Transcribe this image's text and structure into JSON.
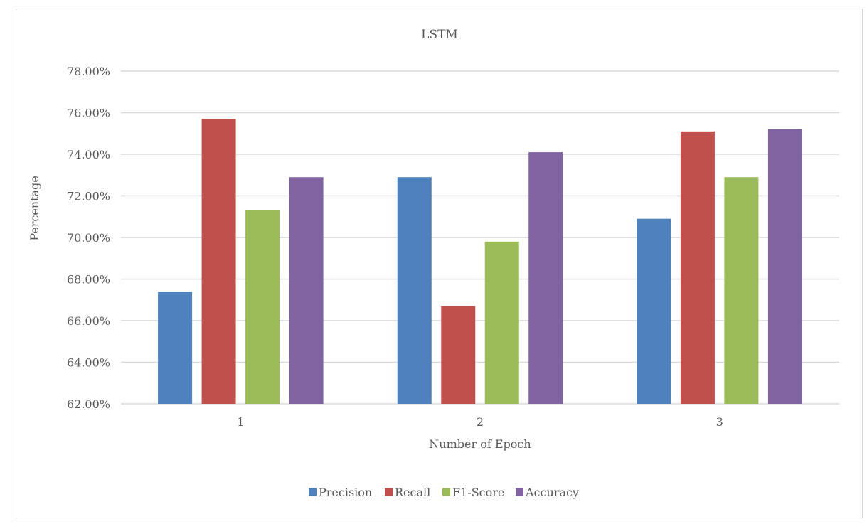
{
  "chart_data": {
    "type": "bar",
    "title": "LSTM",
    "xlabel": "Number of Epoch",
    "ylabel": "Percentage",
    "categories": [
      "1",
      "2",
      "3"
    ],
    "ylim": [
      0.62,
      0.78
    ],
    "yticks": [
      0.62,
      0.64,
      0.66,
      0.68,
      0.7,
      0.72,
      0.74,
      0.76,
      0.78
    ],
    "ytick_labels": [
      "62.00%",
      "64.00%",
      "66.00%",
      "68.00%",
      "70.00%",
      "72.00%",
      "74.00%",
      "76.00%",
      "78.00%"
    ],
    "grid": true,
    "legend_position": "bottom",
    "series": [
      {
        "name": "Precision",
        "color": "#4F81BD",
        "values": [
          0.674,
          0.729,
          0.709
        ]
      },
      {
        "name": "Recall",
        "color": "#C0504D",
        "values": [
          0.757,
          0.667,
          0.751
        ]
      },
      {
        "name": "F1-Score",
        "color": "#9BBB59",
        "values": [
          0.713,
          0.698,
          0.729
        ]
      },
      {
        "name": "Accuracy",
        "color": "#8064A2",
        "values": [
          0.729,
          0.741,
          0.752
        ]
      }
    ]
  }
}
